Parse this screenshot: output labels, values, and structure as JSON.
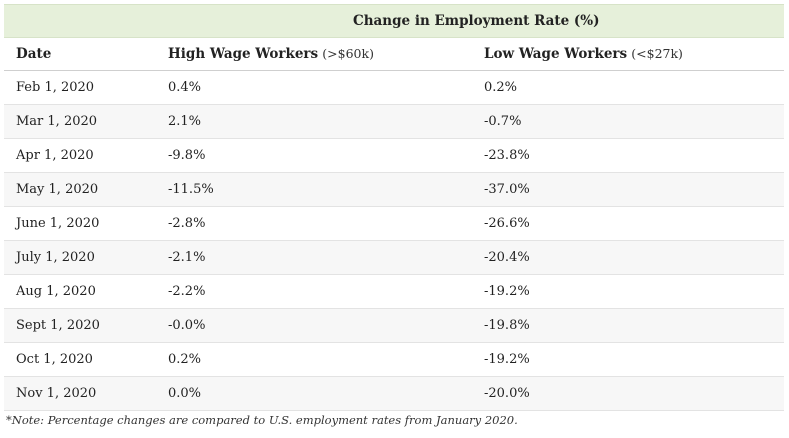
{
  "table": {
    "banner": "Change in Employment Rate (%)",
    "headers": {
      "date": "Date",
      "high_main": "High Wage Workers",
      "high_sub": "(>$60k)",
      "low_main": "Low Wage Workers",
      "low_sub": "(<$27k)"
    },
    "rows": [
      {
        "date": "Feb 1, 2020",
        "high": "0.4%",
        "low": "0.2%"
      },
      {
        "date": "Mar 1, 2020",
        "high": "2.1%",
        "low": "-0.7%"
      },
      {
        "date": "Apr 1, 2020",
        "high": "-9.8%",
        "low": "-23.8%"
      },
      {
        "date": "May 1, 2020",
        "high": "-11.5%",
        "low": "-37.0%"
      },
      {
        "date": "June 1, 2020",
        "high": "-2.8%",
        "low": "-26.6%"
      },
      {
        "date": "July 1, 2020",
        "high": "-2.1%",
        "low": "-20.4%"
      },
      {
        "date": "Aug 1, 2020",
        "high": "-2.2%",
        "low": "-19.2%"
      },
      {
        "date": "Sept 1, 2020",
        "high": "-0.0%",
        "low": "-19.8%"
      },
      {
        "date": "Oct 1, 2020",
        "high": "0.2%",
        "low": "-19.2%"
      },
      {
        "date": "Nov 1, 2020",
        "high": "0.0%",
        "low": "-20.0%"
      }
    ]
  },
  "note": "*Note: Percentage changes are compared to U.S. employment rates from January 2020.",
  "colors": {
    "banner_bg": "#e6f0da",
    "alt_row_bg": "#f6f6f6"
  }
}
